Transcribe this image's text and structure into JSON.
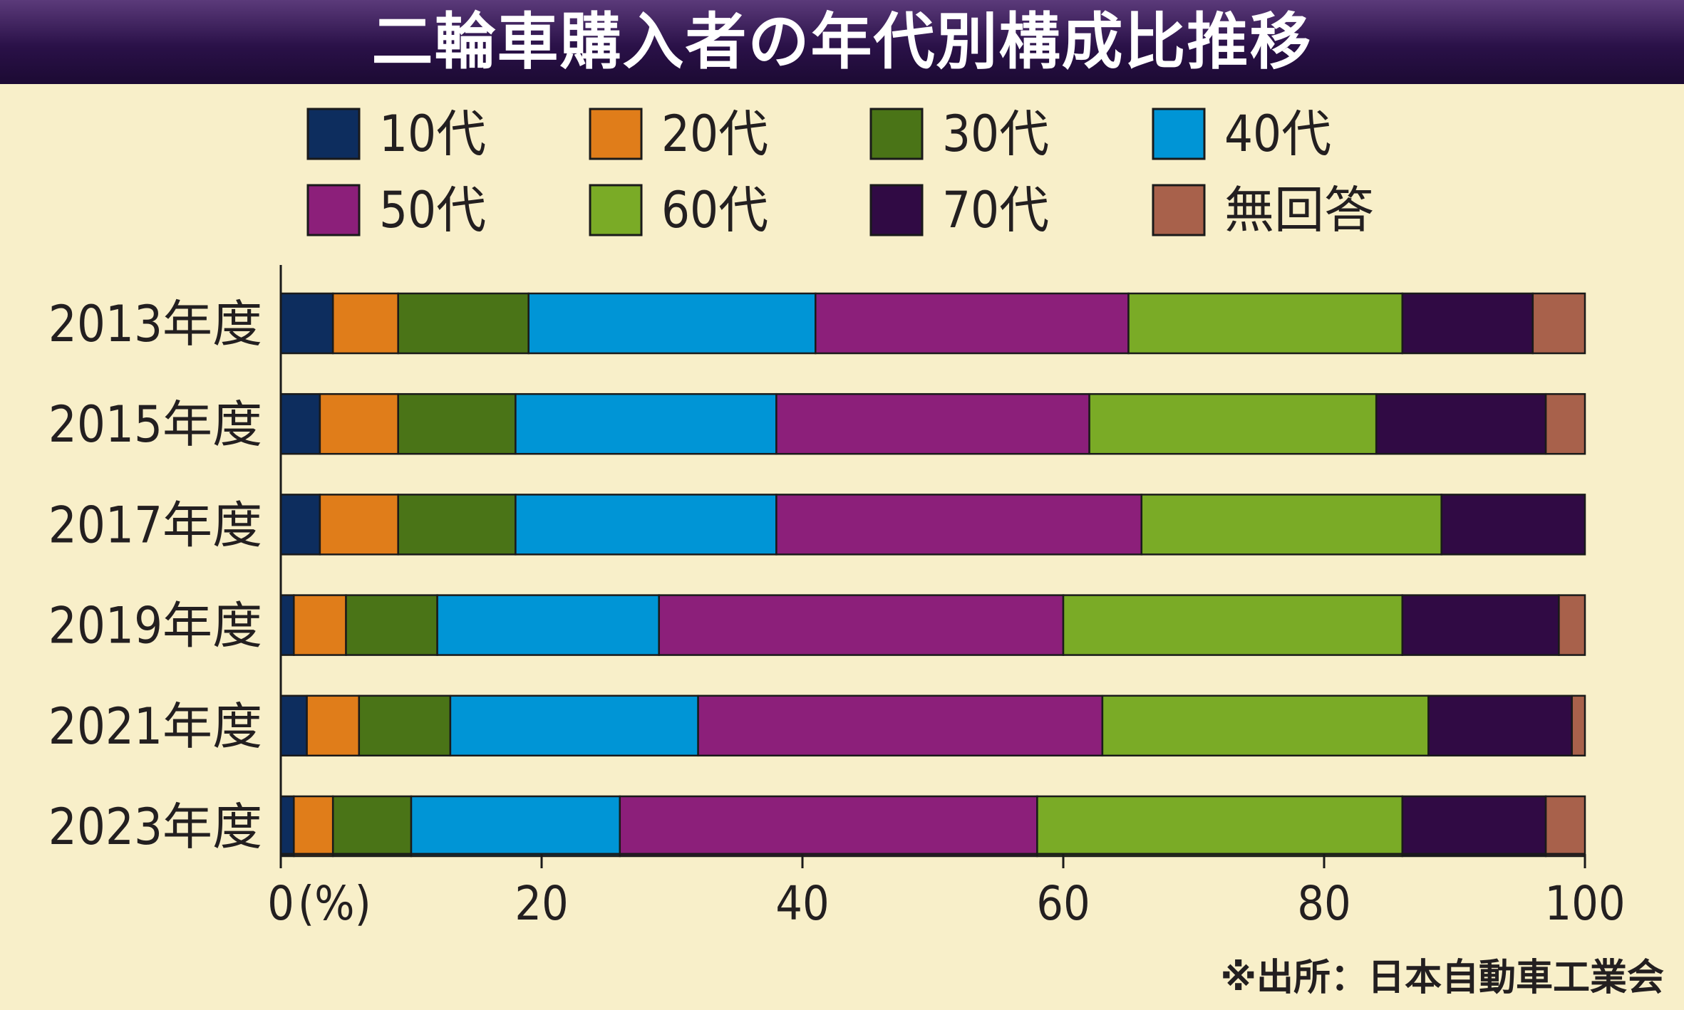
{
  "title": "二輪車購入者の年代別構成比推移",
  "source": "※出所：日本自動車工業会",
  "colors": {
    "background": "#f8efc9",
    "title_bg": "#2a1148",
    "title_text": "#ffffff",
    "text": "#231f20"
  },
  "chart_data": {
    "type": "bar",
    "orientation": "horizontal",
    "stacked": true,
    "categories": [
      "2013年度",
      "2015年度",
      "2017年度",
      "2019年度",
      "2021年度",
      "2023年度"
    ],
    "series": [
      {
        "name": "10代",
        "color": "#0d2d5e",
        "values": [
          4,
          3,
          3,
          1,
          2,
          1
        ]
      },
      {
        "name": "20代",
        "color": "#e07d1a",
        "values": [
          5,
          6,
          6,
          4,
          4,
          3
        ]
      },
      {
        "name": "30代",
        "color": "#4a7417",
        "values": [
          10,
          9,
          9,
          7,
          7,
          6
        ]
      },
      {
        "name": "40代",
        "color": "#0095d6",
        "values": [
          22,
          20,
          20,
          17,
          19,
          16
        ]
      },
      {
        "name": "50代",
        "color": "#8c1f7a",
        "values": [
          24,
          24,
          28,
          31,
          31,
          32
        ]
      },
      {
        "name": "60代",
        "color": "#7aab26",
        "values": [
          21,
          22,
          23,
          26,
          25,
          28
        ]
      },
      {
        "name": "70代",
        "color": "#300a44",
        "values": [
          10,
          13,
          11,
          12,
          11,
          11
        ]
      },
      {
        "name": "無回答",
        "color": "#a8614b",
        "values": [
          4,
          3,
          0,
          2,
          1,
          3
        ]
      }
    ],
    "xlim": [
      0,
      100
    ],
    "xticks": [
      "0",
      "20",
      "40",
      "60",
      "80",
      "100"
    ],
    "xunit": "(%)",
    "legend_position": "top"
  }
}
